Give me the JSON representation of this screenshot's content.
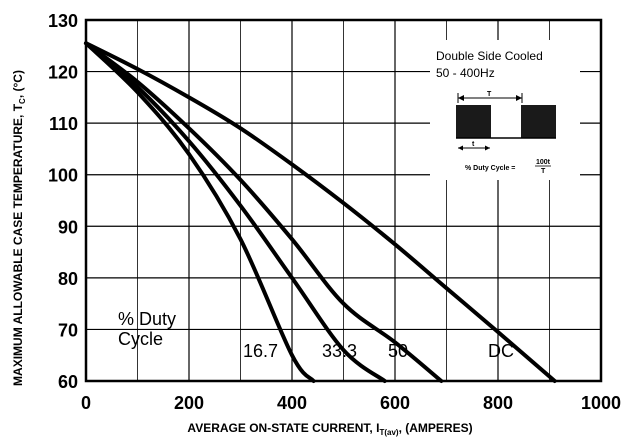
{
  "chart_data": {
    "type": "line",
    "xlabel": "AVERAGE ON-STATE CURRENT, I",
    "xlabel_sub": "T(av)",
    "xlabel_suffix": ", (AMPERES)",
    "ylabel": "MAXIMUM ALLOWABLE CASE TEMPERATURE, T",
    "ylabel_sub": "C",
    "ylabel_suffix": ", (°C)",
    "xlim": [
      0,
      1000
    ],
    "ylim": [
      60,
      130
    ],
    "x_ticks": [
      0,
      200,
      400,
      600,
      800,
      1000
    ],
    "y_ticks": [
      60,
      70,
      80,
      90,
      100,
      110,
      120,
      130
    ],
    "grid": true,
    "duty_cycle_title": [
      "% Duty",
      "Cycle"
    ],
    "series": [
      {
        "name": "16.7",
        "x": [
          0,
          100,
          200,
          300,
          400,
          442
        ],
        "y": [
          125.5,
          116,
          104,
          87.5,
          65,
          60
        ]
      },
      {
        "name": "33.3",
        "x": [
          0,
          100,
          200,
          300,
          400,
          500,
          580
        ],
        "y": [
          125.5,
          117,
          106.5,
          94,
          80,
          66,
          60
        ]
      },
      {
        "name": "50",
        "x": [
          0,
          100,
          200,
          300,
          400,
          500,
          600,
          690
        ],
        "y": [
          125.5,
          118,
          109,
          99,
          87.5,
          75,
          67.5,
          60
        ]
      },
      {
        "name": "DC",
        "x": [
          0,
          100,
          200,
          300,
          400,
          500,
          600,
          700,
          800,
          910
        ],
        "y": [
          125.5,
          120.5,
          115,
          109,
          102,
          94.5,
          86.5,
          78,
          69.5,
          60
        ]
      }
    ],
    "inset": {
      "title": "Double Side Cooled",
      "subtitle": "50 - 400Hz",
      "period_symbol": "T",
      "on_time_symbol": "t",
      "formula": "% Duty Cycle =",
      "formula_num": "100t",
      "formula_den": "T"
    }
  }
}
